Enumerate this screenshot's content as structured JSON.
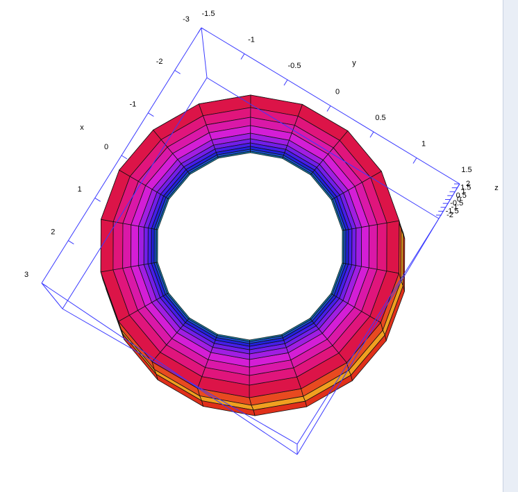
{
  "chart_data": {
    "type": "surface3d",
    "xlabel": "x",
    "ylabel": "y",
    "zlabel": "z",
    "xlim": [
      -3,
      3
    ],
    "xticks": [
      -3,
      -2,
      -1,
      0,
      1,
      2,
      3
    ],
    "ylim": [
      -1.5,
      1.5
    ],
    "yticks": [
      -1.5,
      -1,
      -0.5,
      0,
      0.5,
      1,
      1.5
    ],
    "zlim": [
      -2,
      2
    ],
    "zticks": [
      -2,
      -1.5,
      -1,
      -0.5,
      0,
      0.5,
      1,
      1.5,
      2
    ],
    "axis_color": "#3a3aff"
  }
}
